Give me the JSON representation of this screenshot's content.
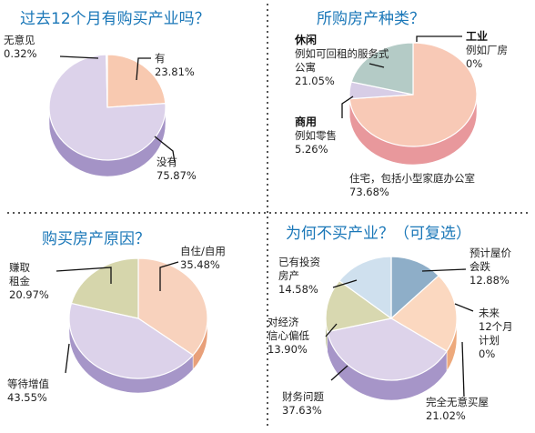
{
  "chart_data": [
    {
      "type": "pie",
      "title": "过去12个月有购买产业吗？",
      "slices": [
        {
          "lines": [
            "有",
            "23.81%"
          ],
          "value": 23.81,
          "color": "#f8c9b0",
          "side": "#e79c7c"
        },
        {
          "lines": [
            "没有",
            "75.87%"
          ],
          "value": 75.87,
          "color": "#dcd2ea",
          "side": "#a493c6"
        },
        {
          "lines": [
            "无意见",
            "0.32%"
          ],
          "value": 0.32,
          "color": "#c4d8e6",
          "side": "#8fb2c8"
        }
      ]
    },
    {
      "type": "pie",
      "title": "所购房产种类？",
      "slices": [
        {
          "lines": [
            "工业",
            "例如厂房",
            "0%"
          ],
          "value": 0,
          "color": "#6b8fb0",
          "side": "#4a6d8c"
        },
        {
          "lines": [
            "住宅，包括小型家庭办公室",
            "73.68%"
          ],
          "value": 73.68,
          "color": "#f8c9b6",
          "side": "#e8989c"
        },
        {
          "lines": [
            "商用",
            "例如零售",
            "5.26%"
          ],
          "value": 5.26,
          "color": "#d7cde6",
          "side": "#a594c4"
        },
        {
          "lines": [
            "休闲",
            "例如可回租的服务式",
            "公寓",
            "21.05%"
          ],
          "value": 21.05,
          "color": "#b4cbc6",
          "side": "#7fa19a"
        }
      ]
    },
    {
      "type": "pie",
      "title": "购买房产原因？",
      "slices": [
        {
          "lines": [
            "自住/自用",
            "35.48%"
          ],
          "value": 35.48,
          "color": "#f8d2bd",
          "side": "#e8a07a"
        },
        {
          "lines": [
            "等待增值",
            "43.55%"
          ],
          "value": 43.55,
          "color": "#dcd2ea",
          "side": "#a696c8"
        },
        {
          "lines": [
            "赚取",
            "租金",
            "20.97%"
          ],
          "value": 20.97,
          "color": "#d6d6ac",
          "side": "#a5a872"
        }
      ]
    },
    {
      "type": "pie",
      "title": "为何不买产业？（可复选）",
      "slices": [
        {
          "lines": [
            "预计屋价",
            "会跌",
            "12.88%"
          ],
          "value": 12.88,
          "color": "#8eaec8",
          "side": "#5f83a3"
        },
        {
          "lines": [
            "未来",
            "12个月",
            "计划",
            "0%"
          ],
          "value": 0,
          "color": "#f0a070",
          "side": "#d88050"
        },
        {
          "lines": [
            "完全无意买屋",
            "21.02%"
          ],
          "value": 21.02,
          "color": "#fbd8c0",
          "side": "#eda97c"
        },
        {
          "lines": [
            "财务问题",
            "37.63%"
          ],
          "value": 37.63,
          "color": "#ddd3ea",
          "side": "#a695c8"
        },
        {
          "lines": [
            "对经济",
            "信心偏低",
            "13.90%"
          ],
          "value": 13.9,
          "color": "#d8d8b0",
          "side": "#a8aa78"
        },
        {
          "lines": [
            "已有投资",
            "房产",
            "14.58%"
          ],
          "value": 14.58,
          "color": "#cfe0ee",
          "side": "#98b6cc"
        }
      ]
    }
  ]
}
